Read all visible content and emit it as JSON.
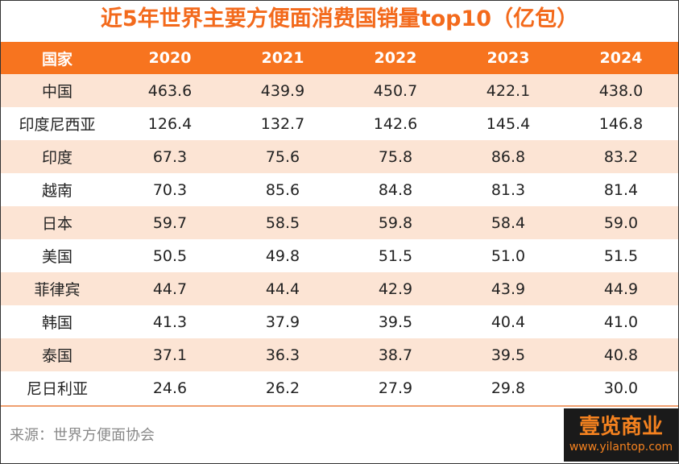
{
  "header": {
    "title": "近5年世界主要方便面消费国销量top10（亿包）"
  },
  "table": {
    "columns": [
      "国家",
      "2020",
      "2021",
      "2022",
      "2023",
      "2024"
    ],
    "rows": [
      [
        "中国",
        "463.6",
        "439.9",
        "450.7",
        "422.1",
        "438.0"
      ],
      [
        "印度尼西亚",
        "126.4",
        "132.7",
        "142.6",
        "145.4",
        "146.8"
      ],
      [
        "印度",
        "67.3",
        "75.6",
        "75.8",
        "86.8",
        "83.2"
      ],
      [
        "越南",
        "70.3",
        "85.6",
        "84.8",
        "81.3",
        "81.4"
      ],
      [
        "日本",
        "59.7",
        "58.5",
        "59.8",
        "58.4",
        "59.0"
      ],
      [
        "美国",
        "50.5",
        "49.8",
        "51.5",
        "51.0",
        "51.5"
      ],
      [
        "菲律宾",
        "44.7",
        "44.4",
        "42.9",
        "43.9",
        "44.9"
      ],
      [
        "韩国",
        "41.3",
        "37.9",
        "39.5",
        "40.4",
        "41.0"
      ],
      [
        "泰国",
        "37.1",
        "36.3",
        "38.7",
        "39.5",
        "40.8"
      ],
      [
        "尼日利亚",
        "24.6",
        "26.2",
        "27.9",
        "29.8",
        "30.0"
      ]
    ]
  },
  "footer": {
    "source": "来源：世界方便面协会"
  },
  "logo": {
    "name": "壹览商业",
    "url": "www.yilantop.com"
  }
}
